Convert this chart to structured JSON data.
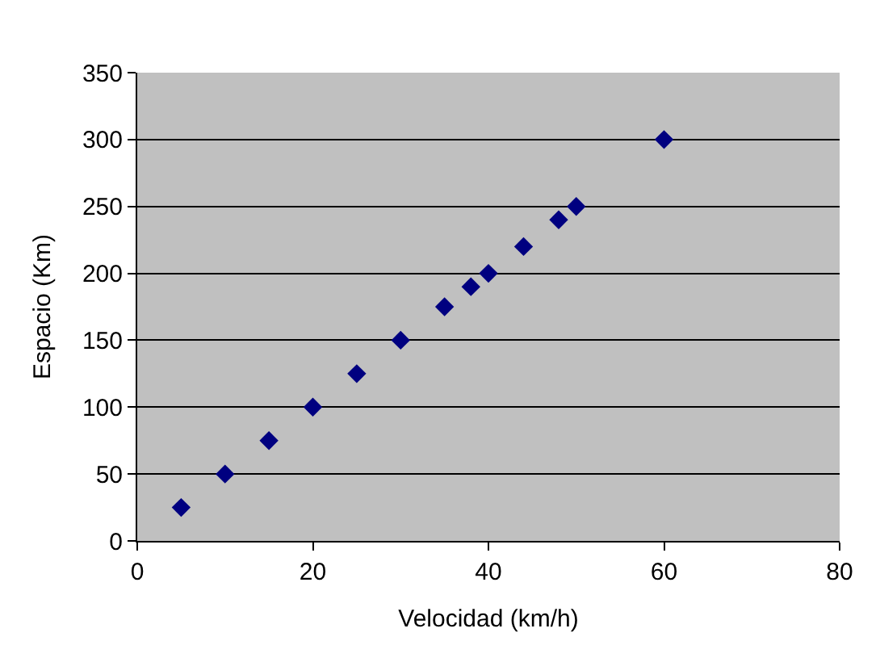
{
  "chart_data": {
    "type": "scatter",
    "xlabel": "Velocidad (km/h)",
    "ylabel": "Espacio (Km)",
    "x": [
      5,
      10,
      15,
      20,
      25,
      30,
      35,
      38,
      40,
      44,
      48,
      50,
      60
    ],
    "series": [
      {
        "color": "#000080",
        "values": [
          25,
          50,
          75,
          100,
          125,
          150,
          175,
          190,
          200,
          220,
          240,
          250,
          300
        ]
      }
    ],
    "xlim": [
      0,
      80
    ],
    "xticks": [
      0,
      20,
      40,
      60,
      80
    ],
    "ylim": [
      0,
      350
    ],
    "yticks": [
      0,
      50,
      100,
      150,
      200,
      250,
      300,
      350
    ],
    "grid": "y",
    "marker": "diamond",
    "legend": false
  }
}
